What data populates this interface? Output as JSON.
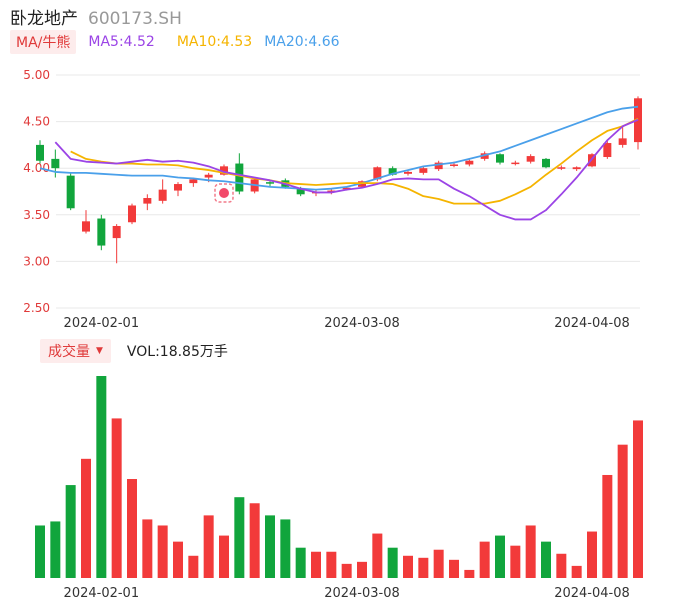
{
  "header": {
    "name": "卧龙地产",
    "code": "600173.SH"
  },
  "ma": {
    "tab": "MA/牛熊",
    "items": [
      {
        "label": "MA5:4.52",
        "color": "#9b44e6"
      },
      {
        "label": "MA10:4.53",
        "color": "#f5b400"
      },
      {
        "label": "MA20:4.66",
        "color": "#4aa0ea"
      }
    ]
  },
  "volume": {
    "tab": "成交量",
    "caret": "▼",
    "label": "VOL:18.85万手"
  },
  "colors": {
    "up": "#f23a3a",
    "down": "#11a53c",
    "grid": "#e8e8e8",
    "axis_text": "#e03a3a"
  },
  "marker_icon": "bull-bear-marker-icon",
  "chart_data": {
    "type": "candlestick",
    "y_ticks": [
      "5.00",
      "4.50",
      "4.00",
      "3.50",
      "3.00",
      "2.50"
    ],
    "ylim": [
      2.5,
      5.0
    ],
    "x_ticks": [
      {
        "label": "2024-02-01",
        "index": 4
      },
      {
        "label": "2024-03-08",
        "index": 21
      },
      {
        "label": "2024-04-08",
        "index": 36
      }
    ],
    "candles": [
      [
        4.25,
        4.08,
        4.3,
        4.05
      ],
      [
        4.1,
        4.0,
        4.2,
        3.9
      ],
      [
        3.92,
        3.57,
        3.95,
        3.55
      ],
      [
        3.32,
        3.43,
        3.55,
        3.3
      ],
      [
        3.46,
        3.17,
        3.5,
        3.12
      ],
      [
        3.25,
        3.38,
        3.4,
        2.98
      ],
      [
        3.42,
        3.6,
        3.62,
        3.4
      ],
      [
        3.62,
        3.68,
        3.72,
        3.55
      ],
      [
        3.65,
        3.77,
        3.88,
        3.62
      ],
      [
        3.76,
        3.83,
        3.85,
        3.7
      ],
      [
        3.84,
        3.88,
        3.9,
        3.8
      ],
      [
        3.9,
        3.93,
        3.95,
        3.85
      ],
      [
        3.93,
        4.02,
        4.04,
        3.92
      ],
      [
        4.05,
        3.75,
        4.16,
        3.72
      ],
      [
        3.75,
        3.88,
        3.9,
        3.73
      ],
      [
        3.85,
        3.84,
        3.86,
        3.8
      ],
      [
        3.87,
        3.8,
        3.89,
        3.78
      ],
      [
        3.78,
        3.72,
        3.8,
        3.7
      ],
      [
        3.73,
        3.75,
        3.77,
        3.7
      ],
      [
        3.75,
        3.76,
        3.78,
        3.72
      ],
      [
        3.78,
        3.79,
        3.8,
        3.76
      ],
      [
        3.8,
        3.86,
        3.87,
        3.79
      ],
      [
        3.88,
        4.01,
        4.02,
        3.86
      ],
      [
        4.0,
        3.93,
        4.02,
        3.92
      ],
      [
        3.94,
        3.96,
        3.98,
        3.92
      ],
      [
        3.95,
        4.0,
        4.02,
        3.93
      ],
      [
        3.99,
        4.06,
        4.08,
        3.97
      ],
      [
        4.03,
        4.04,
        4.07,
        4.01
      ],
      [
        4.04,
        4.08,
        4.1,
        4.02
      ],
      [
        4.1,
        4.16,
        4.18,
        4.08
      ],
      [
        4.15,
        4.06,
        4.16,
        4.04
      ],
      [
        4.05,
        4.06,
        4.08,
        4.03
      ],
      [
        4.07,
        4.13,
        4.15,
        4.05
      ],
      [
        4.1,
        4.01,
        4.11,
        4.0
      ],
      [
        4.0,
        4.01,
        4.03,
        3.98
      ],
      [
        3.99,
        4.01,
        4.02,
        3.97
      ],
      [
        4.02,
        4.15,
        4.16,
        4.01
      ],
      [
        4.12,
        4.27,
        4.3,
        4.1
      ],
      [
        4.25,
        4.32,
        4.45,
        4.22
      ],
      [
        4.28,
        4.75,
        4.77,
        4.2
      ]
    ],
    "ma5": [
      4.28,
      4.1,
      4.07,
      4.06,
      4.05,
      4.07,
      4.09,
      4.07,
      4.08,
      4.06,
      4.02,
      3.96,
      3.93,
      3.9,
      3.87,
      3.83,
      3.78,
      3.74,
      3.74,
      3.77,
      3.79,
      3.83,
      3.88,
      3.89,
      3.88,
      3.88,
      3.78,
      3.7,
      3.6,
      3.5,
      3.45,
      3.45,
      3.55,
      3.72,
      3.9,
      4.1,
      4.3,
      4.45,
      4.52
    ],
    "ma10": [
      4.18,
      4.1,
      4.07,
      4.05,
      4.05,
      4.04,
      4.04,
      4.03,
      4.0,
      3.98,
      3.95,
      3.92,
      3.89,
      3.87,
      3.84,
      3.83,
      3.82,
      3.83,
      3.84,
      3.84,
      3.84,
      3.83,
      3.78,
      3.7,
      3.67,
      3.62,
      3.62,
      3.62,
      3.65,
      3.72,
      3.8,
      3.93,
      4.05,
      4.18,
      4.3,
      4.4,
      4.45,
      4.53
    ],
    "ma20": [
      4.0,
      3.96,
      3.95,
      3.95,
      3.94,
      3.93,
      3.92,
      3.92,
      3.92,
      3.9,
      3.89,
      3.87,
      3.86,
      3.84,
      3.82,
      3.8,
      3.79,
      3.78,
      3.77,
      3.78,
      3.8,
      3.84,
      3.89,
      3.94,
      3.98,
      4.02,
      4.04,
      4.06,
      4.1,
      4.14,
      4.18,
      4.24,
      4.3,
      4.36,
      4.42,
      4.48,
      4.54,
      4.6,
      4.64,
      4.66
    ],
    "volumes": [
      26,
      28,
      46,
      59,
      100,
      79,
      49,
      29,
      26,
      18,
      11,
      31,
      21,
      40,
      37,
      31,
      29,
      15,
      13,
      13,
      7,
      8,
      22,
      15,
      11,
      10,
      14,
      9,
      4,
      18,
      21,
      16,
      26,
      18,
      12,
      6,
      23,
      51,
      66,
      78
    ]
  }
}
